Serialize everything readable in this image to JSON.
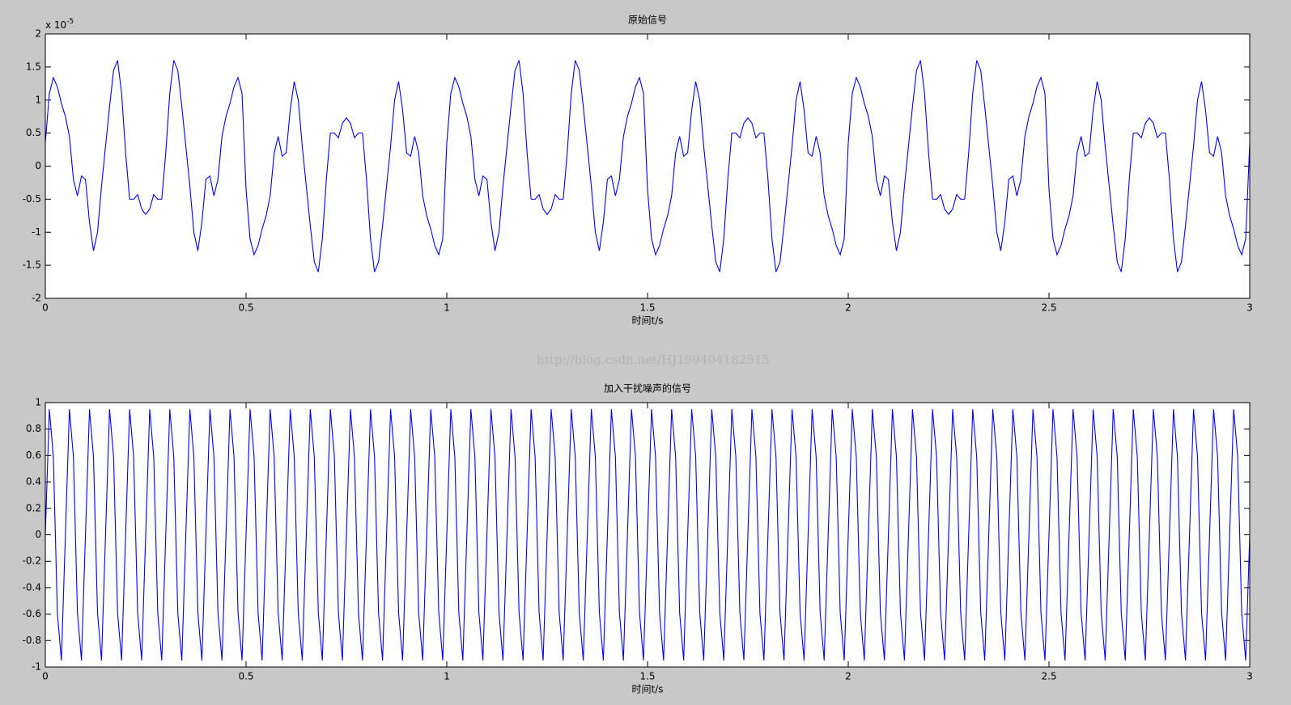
{
  "chart_data": [
    {
      "type": "line",
      "title": "原始信号",
      "xlabel": "时间t/s",
      "y_multiplier": "x 10",
      "y_multiplier_exponent": "-5",
      "color": "#0000ff",
      "xlim": [
        0,
        3
      ],
      "ylim": [
        -2,
        2
      ],
      "xticks": [
        0,
        0.5,
        1,
        1.5,
        2,
        2.5,
        3
      ],
      "yticks": [
        -2,
        -1.5,
        -1,
        -0.5,
        0,
        0.5,
        1,
        1.5,
        2
      ],
      "x": [
        0,
        0.01,
        0.02,
        0.03,
        0.04,
        0.05,
        0.06,
        0.07,
        0.08,
        0.09,
        0.1,
        0.11,
        0.12,
        0.13,
        0.14,
        0.15,
        0.16,
        0.17,
        0.18,
        0.19,
        0.2,
        0.21,
        0.22,
        0.23,
        0.24,
        0.25,
        0.26,
        0.27,
        0.28,
        0.29,
        0.3,
        0.31,
        0.32,
        0.33,
        0.34,
        0.35,
        0.36,
        0.37,
        0.38,
        0.39,
        0.4,
        0.41,
        0.42,
        0.43,
        0.44,
        0.45,
        0.46,
        0.47,
        0.48,
        0.49,
        0.5,
        0.51,
        0.52,
        0.53,
        0.54,
        0.55,
        0.56,
        0.57,
        0.58,
        0.59,
        0.6,
        0.61,
        0.62,
        0.63,
        0.64,
        0.65,
        0.66,
        0.67,
        0.68,
        0.69,
        0.7,
        0.71,
        0.72,
        0.73,
        0.74,
        0.75,
        0.76,
        0.77,
        0.78,
        0.79,
        0.8,
        0.81,
        0.82,
        0.83,
        0.84,
        0.85,
        0.86,
        0.87,
        0.88,
        0.89,
        0.9,
        0.91,
        0.92,
        0.93,
        0.94,
        0.95,
        0.96,
        0.97,
        0.98,
        0.99,
        1,
        1.01,
        1.02,
        1.03,
        1.04,
        1.05,
        1.06,
        1.07,
        1.08,
        1.09,
        1.1,
        1.11,
        1.12,
        1.13,
        1.14,
        1.15,
        1.16,
        1.17,
        1.18,
        1.19,
        1.2,
        1.21,
        1.22,
        1.23,
        1.24,
        1.25,
        1.26,
        1.27,
        1.28,
        1.29,
        1.3,
        1.31,
        1.32,
        1.33,
        1.34,
        1.35,
        1.36,
        1.37,
        1.38,
        1.39,
        1.4,
        1.41,
        1.42,
        1.43,
        1.44,
        1.45,
        1.46,
        1.47,
        1.48,
        1.49,
        1.5,
        1.51,
        1.52,
        1.53,
        1.54,
        1.55,
        1.56,
        1.57,
        1.58,
        1.59,
        1.6,
        1.61,
        1.62,
        1.63,
        1.64,
        1.65,
        1.66,
        1.67,
        1.68,
        1.69,
        1.7,
        1.71,
        1.72,
        1.73,
        1.74,
        1.75,
        1.76,
        1.77,
        1.78,
        1.79,
        1.8,
        1.81,
        1.82,
        1.83,
        1.84,
        1.85,
        1.86,
        1.87,
        1.88,
        1.89,
        1.9,
        1.91,
        1.92,
        1.93,
        1.94,
        1.95,
        1.96,
        1.97,
        1.98,
        1.99,
        2,
        2.01,
        2.02,
        2.03,
        2.04,
        2.05,
        2.06,
        2.07,
        2.08,
        2.09,
        2.1,
        2.11,
        2.12,
        2.13,
        2.14,
        2.15,
        2.16,
        2.17,
        2.18,
        2.19,
        2.2,
        2.21,
        2.22,
        2.23,
        2.24,
        2.25,
        2.26,
        2.27,
        2.28,
        2.29,
        2.3,
        2.31,
        2.32,
        2.33,
        2.34,
        2.35,
        2.36,
        2.37,
        2.38,
        2.39,
        2.4,
        2.41,
        2.42,
        2.43,
        2.44,
        2.45,
        2.46,
        2.47,
        2.48,
        2.49,
        2.5,
        2.51,
        2.52,
        2.53,
        2.54,
        2.55,
        2.56,
        2.57,
        2.58,
        2.59,
        2.6,
        2.61,
        2.62,
        2.63,
        2.64,
        2.65,
        2.66,
        2.67,
        2.68,
        2.69,
        2.7,
        2.71,
        2.72,
        2.73,
        2.74,
        2.75,
        2.76,
        2.77,
        2.78,
        2.79,
        2.8,
        2.81,
        2.82,
        2.83,
        2.84,
        2.85,
        2.86,
        2.87,
        2.88,
        2.89,
        2.9,
        2.91,
        2.92,
        2.93,
        2.94,
        2.95,
        2.96,
        2.97,
        2.98,
        2.99,
        3
      ],
      "values": [
        0.35,
        1.1,
        1.34,
        1.2,
        0.95,
        0.75,
        0.45,
        -0.2,
        -0.45,
        -0.15,
        -0.2,
        -0.85,
        -1.28,
        -1,
        -0.3,
        0.3,
        0.9,
        1.45,
        1.6,
        1.1,
        0.2,
        -0.5,
        -0.5,
        -0.43,
        -0.65,
        -0.73,
        -0.65,
        -0.43,
        -0.5,
        -0.5,
        0.2,
        1.1,
        1.6,
        1.45,
        0.9,
        0.3,
        -0.3,
        -1,
        -1.28,
        -0.85,
        -0.2,
        -0.15,
        -0.45,
        -0.2,
        0.45,
        0.75,
        0.95,
        1.2,
        1.34,
        1.1,
        -0.35,
        -1.1,
        -1.34,
        -1.2,
        -0.95,
        -0.75,
        -0.45,
        0.2,
        0.45,
        0.15,
        0.2,
        0.85,
        1.28,
        1,
        0.3,
        -0.3,
        -0.9,
        -1.45,
        -1.6,
        -1.1,
        -0.2,
        0.5,
        0.5,
        0.43,
        0.65,
        0.73,
        0.65,
        0.43,
        0.5,
        0.5,
        -0.2,
        -1.1,
        -1.6,
        -1.45,
        -0.9,
        -0.3,
        0.3,
        1,
        1.28,
        0.85,
        0.2,
        0.15,
        0.45,
        0.2,
        -0.45,
        -0.75,
        -0.95,
        -1.2,
        -1.34,
        -1.1,
        0.35,
        1.1,
        1.34,
        1.2,
        0.95,
        0.75,
        0.45,
        -0.2,
        -0.45,
        -0.15,
        -0.2,
        -0.85,
        -1.28,
        -1,
        -0.3,
        0.3,
        0.9,
        1.45,
        1.6,
        1.1,
        0.2,
        -0.5,
        -0.5,
        -0.43,
        -0.65,
        -0.73,
        -0.65,
        -0.43,
        -0.5,
        -0.5,
        0.2,
        1.1,
        1.6,
        1.45,
        0.9,
        0.3,
        -0.3,
        -1,
        -1.28,
        -0.85,
        -0.2,
        -0.15,
        -0.45,
        -0.2,
        0.45,
        0.75,
        0.95,
        1.2,
        1.34,
        1.1,
        -0.35,
        -1.1,
        -1.34,
        -1.2,
        -0.95,
        -0.75,
        -0.45,
        0.2,
        0.45,
        0.15,
        0.2,
        0.85,
        1.28,
        1,
        0.3,
        -0.3,
        -0.9,
        -1.45,
        -1.6,
        -1.1,
        -0.2,
        0.5,
        0.5,
        0.43,
        0.65,
        0.73,
        0.65,
        0.43,
        0.5,
        0.5,
        -0.2,
        -1.1,
        -1.6,
        -1.45,
        -0.9,
        -0.3,
        0.3,
        1,
        1.28,
        0.85,
        0.2,
        0.15,
        0.45,
        0.2,
        -0.45,
        -0.75,
        -0.95,
        -1.2,
        -1.34,
        -1.1,
        0.35,
        1.1,
        1.34,
        1.2,
        0.95,
        0.75,
        0.45,
        -0.2,
        -0.45,
        -0.15,
        -0.2,
        -0.85,
        -1.28,
        -1,
        -0.3,
        0.3,
        0.9,
        1.45,
        1.6,
        1.1,
        0.2,
        -0.5,
        -0.5,
        -0.43,
        -0.65,
        -0.73,
        -0.65,
        -0.43,
        -0.5,
        -0.5,
        0.2,
        1.1,
        1.6,
        1.45,
        0.9,
        0.3,
        -0.3,
        -1,
        -1.28,
        -0.85,
        -0.2,
        -0.15,
        -0.45,
        -0.2,
        0.45,
        0.75,
        0.95,
        1.2,
        1.34,
        1.1,
        -0.35,
        -1.1,
        -1.34,
        -1.2,
        -0.95,
        -0.75,
        -0.45,
        0.2,
        0.45,
        0.15,
        0.2,
        0.85,
        1.28,
        1,
        0.3,
        -0.3,
        -0.9,
        -1.45,
        -1.6,
        -1.1,
        -0.2,
        0.5,
        0.5,
        0.43,
        0.65,
        0.73,
        0.65,
        0.43,
        0.5,
        0.5,
        -0.2,
        -1.1,
        -1.6,
        -1.45,
        -0.9,
        -0.3,
        0.3,
        1,
        1.28,
        0.85,
        0.2,
        0.15,
        0.45,
        0.2,
        -0.45,
        -0.75,
        -0.95,
        -1.2,
        -1.34,
        -1.1,
        0.35
      ]
    },
    {
      "type": "line",
      "title": "加入干扰噪声的信号",
      "xlabel": "时间t/s",
      "color": "#0000ff",
      "xlim": [
        0,
        3
      ],
      "ylim": [
        -1,
        1
      ],
      "xticks": [
        0,
        0.5,
        1,
        1.5,
        2,
        2.5,
        3
      ],
      "yticks": [
        -1,
        -0.8,
        -0.6,
        -0.4,
        -0.2,
        0,
        0.2,
        0.4,
        0.6,
        0.8,
        1
      ],
      "x": [
        0,
        0.01,
        0.02,
        0.03,
        0.04,
        0.05,
        0.06,
        0.07,
        0.08,
        0.09,
        0.1,
        0.11,
        0.12,
        0.13,
        0.14,
        0.15,
        0.16,
        0.17,
        0.18,
        0.19,
        0.2,
        0.21,
        0.22,
        0.23,
        0.24,
        0.25,
        0.26,
        0.27,
        0.28,
        0.29,
        0.3,
        0.31,
        0.32,
        0.33,
        0.34,
        0.35,
        0.36,
        0.37,
        0.38,
        0.39,
        0.4,
        0.41,
        0.42,
        0.43,
        0.44,
        0.45,
        0.46,
        0.47,
        0.48,
        0.49,
        0.5,
        0.51,
        0.52,
        0.53,
        0.54,
        0.55,
        0.56,
        0.57,
        0.58,
        0.59,
        0.6,
        0.61,
        0.62,
        0.63,
        0.64,
        0.65,
        0.66,
        0.67,
        0.68,
        0.69,
        0.7,
        0.71,
        0.72,
        0.73,
        0.74,
        0.75,
        0.76,
        0.77,
        0.78,
        0.79,
        0.8,
        0.81,
        0.82,
        0.83,
        0.84,
        0.85,
        0.86,
        0.87,
        0.88,
        0.89,
        0.9,
        0.91,
        0.92,
        0.93,
        0.94,
        0.95,
        0.96,
        0.97,
        0.98,
        0.99,
        1,
        1.01,
        1.02,
        1.03,
        1.04,
        1.05,
        1.06,
        1.07,
        1.08,
        1.09,
        1.1,
        1.11,
        1.12,
        1.13,
        1.14,
        1.15,
        1.16,
        1.17,
        1.18,
        1.19,
        1.2,
        1.21,
        1.22,
        1.23,
        1.24,
        1.25,
        1.26,
        1.27,
        1.28,
        1.29,
        1.3,
        1.31,
        1.32,
        1.33,
        1.34,
        1.35,
        1.36,
        1.37,
        1.38,
        1.39,
        1.4,
        1.41,
        1.42,
        1.43,
        1.44,
        1.45,
        1.46,
        1.47,
        1.48,
        1.49,
        1.5,
        1.51,
        1.52,
        1.53,
        1.54,
        1.55,
        1.56,
        1.57,
        1.58,
        1.59,
        1.6,
        1.61,
        1.62,
        1.63,
        1.64,
        1.65,
        1.66,
        1.67,
        1.68,
        1.69,
        1.7,
        1.71,
        1.72,
        1.73,
        1.74,
        1.75,
        1.76,
        1.77,
        1.78,
        1.79,
        1.8,
        1.81,
        1.82,
        1.83,
        1.84,
        1.85,
        1.86,
        1.87,
        1.88,
        1.89,
        1.9,
        1.91,
        1.92,
        1.93,
        1.94,
        1.95,
        1.96,
        1.97,
        1.98,
        1.99,
        2,
        2.01,
        2.02,
        2.03,
        2.04,
        2.05,
        2.06,
        2.07,
        2.08,
        2.09,
        2.1,
        2.11,
        2.12,
        2.13,
        2.14,
        2.15,
        2.16,
        2.17,
        2.18,
        2.19,
        2.2,
        2.21,
        2.22,
        2.23,
        2.24,
        2.25,
        2.26,
        2.27,
        2.28,
        2.29,
        2.3,
        2.31,
        2.32,
        2.33,
        2.34,
        2.35,
        2.36,
        2.37,
        2.38,
        2.39,
        2.4,
        2.41,
        2.42,
        2.43,
        2.44,
        2.45,
        2.46,
        2.47,
        2.48,
        2.49,
        2.5,
        2.51,
        2.52,
        2.53,
        2.54,
        2.55,
        2.56,
        2.57,
        2.58,
        2.59,
        2.6,
        2.61,
        2.62,
        2.63,
        2.64,
        2.65,
        2.66,
        2.67,
        2.68,
        2.69,
        2.7,
        2.71,
        2.72,
        2.73,
        2.74,
        2.75,
        2.76,
        2.77,
        2.78,
        2.79,
        2.8,
        2.81,
        2.82,
        2.83,
        2.84,
        2.85,
        2.86,
        2.87,
        2.88,
        2.89,
        2.9,
        2.91,
        2.92,
        2.93,
        2.94,
        2.95,
        2.96,
        2.97,
        2.98,
        2.99,
        3
      ],
      "values": [
        0,
        0.95,
        0.59,
        -0.59,
        -0.95,
        0,
        0.95,
        0.59,
        -0.59,
        -0.95,
        0,
        0.95,
        0.59,
        -0.59,
        -0.95,
        0,
        0.95,
        0.59,
        -0.59,
        -0.95,
        0,
        0.95,
        0.59,
        -0.59,
        -0.95,
        0,
        0.95,
        0.59,
        -0.59,
        -0.95,
        0,
        0.95,
        0.59,
        -0.59,
        -0.95,
        0,
        0.95,
        0.59,
        -0.59,
        -0.95,
        0,
        0.95,
        0.59,
        -0.59,
        -0.95,
        0,
        0.95,
        0.59,
        -0.59,
        -0.95,
        0,
        0.95,
        0.59,
        -0.59,
        -0.95,
        0,
        0.95,
        0.59,
        -0.59,
        -0.95,
        0,
        0.95,
        0.59,
        -0.59,
        -0.95,
        0,
        0.95,
        0.59,
        -0.59,
        -0.95,
        0,
        0.95,
        0.59,
        -0.59,
        -0.95,
        0,
        0.95,
        0.59,
        -0.59,
        -0.95,
        0,
        0.95,
        0.59,
        -0.59,
        -0.95,
        0,
        0.95,
        0.59,
        -0.59,
        -0.95,
        0,
        0.95,
        0.59,
        -0.59,
        -0.95,
        0,
        0.95,
        0.59,
        -0.59,
        -0.95,
        0,
        0.95,
        0.59,
        -0.59,
        -0.95,
        0,
        0.95,
        0.59,
        -0.59,
        -0.95,
        0,
        0.95,
        0.59,
        -0.59,
        -0.95,
        0,
        0.95,
        0.59,
        -0.59,
        -0.95,
        0,
        0.95,
        0.59,
        -0.59,
        -0.95,
        0,
        0.95,
        0.59,
        -0.59,
        -0.95,
        0,
        0.95,
        0.59,
        -0.59,
        -0.95,
        0,
        0.95,
        0.59,
        -0.59,
        -0.95,
        0,
        0.95,
        0.59,
        -0.59,
        -0.95,
        0,
        0.95,
        0.59,
        -0.59,
        -0.95,
        0,
        0.95,
        0.59,
        -0.59,
        -0.95,
        0,
        0.95,
        0.59,
        -0.59,
        -0.95,
        0,
        0.95,
        0.59,
        -0.59,
        -0.95,
        0,
        0.95,
        0.59,
        -0.59,
        -0.95,
        0,
        0.95,
        0.59,
        -0.59,
        -0.95,
        0,
        0.95,
        0.59,
        -0.59,
        -0.95,
        0,
        0.95,
        0.59,
        -0.59,
        -0.95,
        0,
        0.95,
        0.59,
        -0.59,
        -0.95,
        0,
        0.95,
        0.59,
        -0.59,
        -0.95,
        0,
        0.95,
        0.59,
        -0.59,
        -0.95,
        0,
        0.95,
        0.59,
        -0.59,
        -0.95,
        0,
        0.95,
        0.59,
        -0.59,
        -0.95,
        0,
        0.95,
        0.59,
        -0.59,
        -0.95,
        0,
        0.95,
        0.59,
        -0.59,
        -0.95,
        0,
        0.95,
        0.59,
        -0.59,
        -0.95,
        0,
        0.95,
        0.59,
        -0.59,
        -0.95,
        0,
        0.95,
        0.59,
        -0.59,
        -0.95,
        0,
        0.95,
        0.59,
        -0.59,
        -0.95,
        0,
        0.95,
        0.59,
        -0.59,
        -0.95,
        0,
        0.95,
        0.59,
        -0.59,
        -0.95,
        0,
        0.95,
        0.59,
        -0.59,
        -0.95,
        0,
        0.95,
        0.59,
        -0.59,
        -0.95,
        0,
        0.95,
        0.59,
        -0.59,
        -0.95,
        0,
        0.95,
        0.59,
        -0.59,
        -0.95,
        0,
        0.95,
        0.59,
        -0.59,
        -0.95,
        0,
        0.95,
        0.59,
        -0.59,
        -0.95,
        0,
        0.95,
        0.59,
        -0.59,
        -0.95,
        0,
        0.95,
        0.59,
        -0.59,
        -0.95,
        0,
        0.95,
        0.59,
        -0.59,
        -0.95,
        0,
        0.95,
        0.59,
        -0.59,
        -0.95,
        0
      ]
    }
  ],
  "watermark": "http://blog.csdn.net/HJ199404182515"
}
